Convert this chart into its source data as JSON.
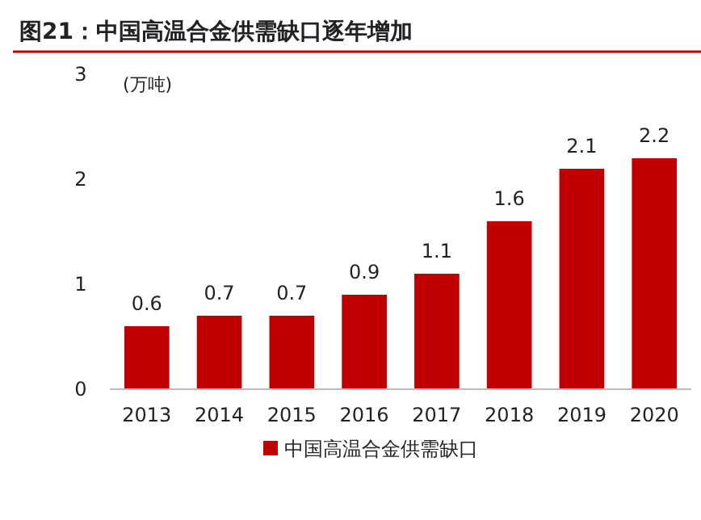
{
  "chart_data": {
    "type": "bar",
    "title": "图21：中国高温合金供需缺口逐年增加",
    "ylabel": "(万吨)",
    "categories": [
      "2013",
      "2014",
      "2015",
      "2016",
      "2017",
      "2018",
      "2019",
      "2020"
    ],
    "series": [
      {
        "name": "中国高温合金供需缺口",
        "color": "#c00000",
        "values": [
          0.6,
          0.7,
          0.7,
          0.9,
          1.1,
          1.6,
          2.1,
          2.2
        ]
      }
    ],
    "ylim": [
      0,
      3
    ],
    "yticks": [
      0,
      1,
      2,
      3
    ],
    "data_labels": true,
    "legend": "bottom"
  }
}
